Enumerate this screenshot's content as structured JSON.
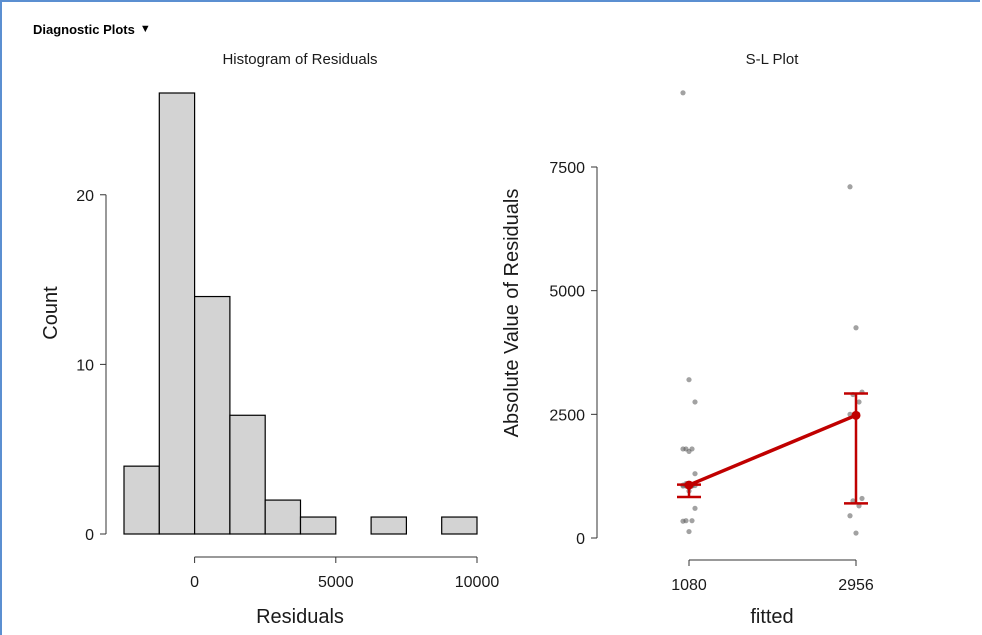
{
  "panel": {
    "title": "Diagnostic Plots",
    "caret": "▼",
    "accent_color": "#5b8fd1"
  },
  "chart_data": [
    {
      "type": "bar",
      "title": "Histogram of Residuals",
      "xlabel": "Residuals",
      "ylabel": "Count",
      "bins": [
        {
          "from": -2500,
          "to": -1250,
          "count": 4
        },
        {
          "from": -1250,
          "to": 0,
          "count": 26
        },
        {
          "from": 0,
          "to": 1250,
          "count": 14
        },
        {
          "from": 1250,
          "to": 2500,
          "count": 7
        },
        {
          "from": 2500,
          "to": 3750,
          "count": 2
        },
        {
          "from": 3750,
          "to": 5000,
          "count": 1
        },
        {
          "from": 5000,
          "to": 6250,
          "count": 0
        },
        {
          "from": 6250,
          "to": 7500,
          "count": 1
        },
        {
          "from": 7500,
          "to": 8750,
          "count": 0
        },
        {
          "from": 8750,
          "to": 10000,
          "count": 1
        }
      ],
      "xticks": [
        "0",
        "5000",
        "10000"
      ],
      "yticks": [
        "0",
        "10",
        "20"
      ],
      "xlim": [
        -2500,
        10000
      ],
      "ylim": [
        0,
        26
      ],
      "bar_color": "#d3d3d3"
    },
    {
      "type": "scatter",
      "title": "S-L Plot",
      "xlabel": "fitted",
      "ylabel": "Absolute Value of Residuals",
      "categories": [
        "1080",
        "2956"
      ],
      "yticks": [
        "0",
        "2500",
        "5000",
        "7500"
      ],
      "ylim": [
        0,
        9000
      ],
      "points": {
        "1080": [
          9000,
          3200,
          2750,
          1800,
          1800,
          1800,
          1750,
          1300,
          1100,
          1070,
          1070,
          1070,
          1060,
          1050,
          1050,
          1050,
          950,
          600,
          350,
          350,
          340,
          130
        ],
        "2956": [
          7100,
          4250,
          2950,
          2900,
          2750,
          2500,
          2450,
          800,
          750,
          650,
          450,
          100
        ]
      },
      "means": [
        1070,
        2480
      ],
      "error_bars": [
        [
          830,
          1080
        ],
        [
          700,
          2920
        ]
      ],
      "line_color": "#c00000"
    }
  ]
}
